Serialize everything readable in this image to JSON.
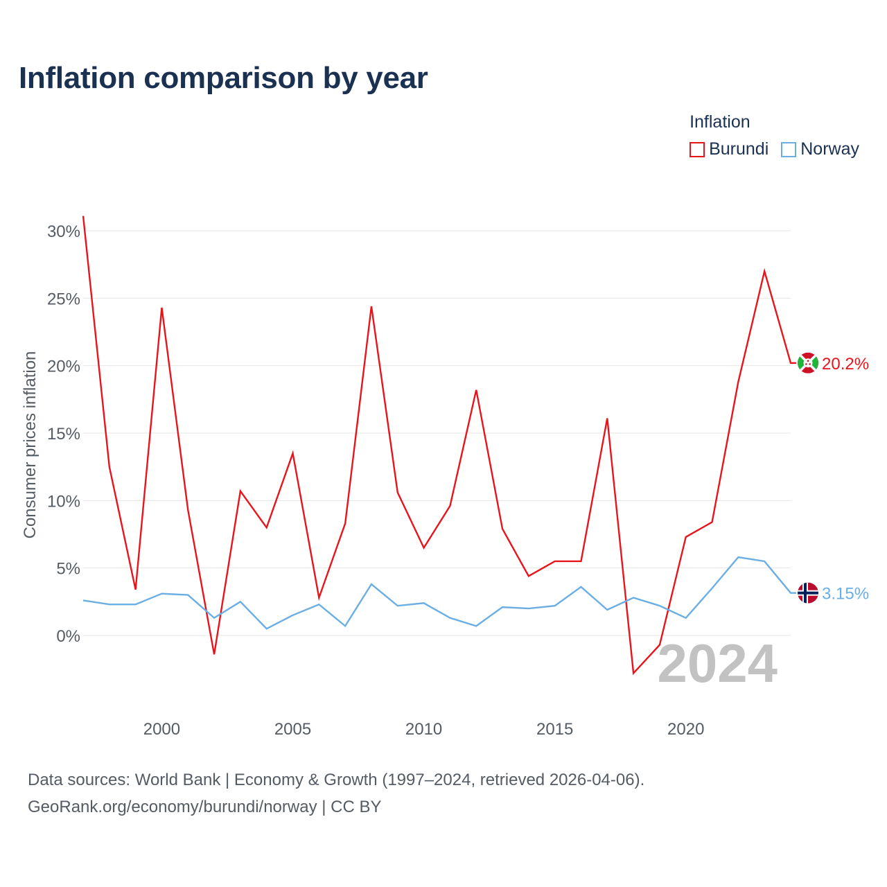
{
  "title": "Inflation comparison by year",
  "legend": {
    "title": "Inflation",
    "items": [
      {
        "label": "Burundi",
        "color": "#e8141c"
      },
      {
        "label": "Norway",
        "color": "#6aaee3"
      }
    ]
  },
  "chart_data": {
    "type": "line",
    "title": "Inflation comparison by year",
    "xlabel": "",
    "ylabel": "Consumer prices inflation",
    "x": [
      1997,
      1998,
      1999,
      2000,
      2001,
      2002,
      2003,
      2004,
      2005,
      2006,
      2007,
      2008,
      2009,
      2010,
      2011,
      2012,
      2013,
      2014,
      2015,
      2016,
      2017,
      2018,
      2019,
      2020,
      2021,
      2022,
      2023,
      2024
    ],
    "xlim": [
      1997,
      2024
    ],
    "xticks": [
      2000,
      2005,
      2010,
      2015,
      2020
    ],
    "ylim": [
      -5,
      31
    ],
    "yticks": [
      0,
      5,
      10,
      15,
      20,
      25,
      30
    ],
    "ytick_labels": [
      "0%",
      "5%",
      "10%",
      "15%",
      "20%",
      "25%",
      "30%"
    ],
    "grid": true,
    "legend_position": "top-right",
    "series": [
      {
        "name": "Burundi",
        "color": "#e8141c",
        "values": [
          31.1,
          12.5,
          3.4,
          24.3,
          9.3,
          -1.4,
          10.7,
          8.0,
          13.5,
          2.8,
          8.3,
          24.4,
          10.6,
          6.5,
          9.6,
          18.2,
          7.9,
          4.4,
          5.5,
          5.5,
          16.1,
          -2.8,
          -0.7,
          7.3,
          8.4,
          18.8,
          27.0,
          20.2
        ],
        "end_label": "20.2%"
      },
      {
        "name": "Norway",
        "color": "#6aaee3",
        "values": [
          2.6,
          2.3,
          2.3,
          3.1,
          3.0,
          1.3,
          2.5,
          0.5,
          1.5,
          2.3,
          0.7,
          3.8,
          2.2,
          2.4,
          1.3,
          0.7,
          2.1,
          2.0,
          2.2,
          3.6,
          1.9,
          2.8,
          2.2,
          1.3,
          3.5,
          5.8,
          5.5,
          3.15
        ],
        "end_label": "3.15%"
      }
    ],
    "watermark_year": "2024"
  },
  "footer": {
    "line1": "Data sources: World Bank | Economy & Growth (1997–2024, retrieved 2026-04-06).",
    "line2": "GeoRank.org/economy/burundi/norway | CC BY"
  },
  "icons": [
    "burundi-flag-icon",
    "norway-flag-icon"
  ]
}
